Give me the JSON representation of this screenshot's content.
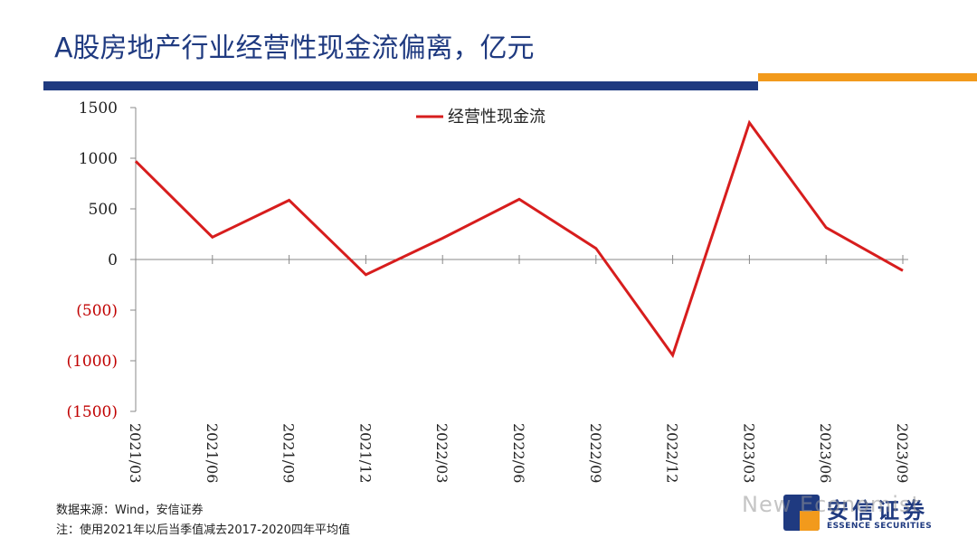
{
  "title": "A股房地产行业经营性现金流偏离，亿元",
  "colors": {
    "title": "#1f3a80",
    "accent_blue": "#1f3a80",
    "accent_orange": "#f29a1c",
    "series": "#d71d1d",
    "negative_tick": "#c00000"
  },
  "chart_data": {
    "type": "line",
    "x": [
      "2021/03",
      "2021/06",
      "2021/09",
      "2021/12",
      "2022/03",
      "2022/06",
      "2022/09",
      "2022/12",
      "2023/03",
      "2023/06",
      "2023/09"
    ],
    "series": [
      {
        "name": "经营性现金流",
        "values": [
          970,
          220,
          585,
          -150,
          210,
          595,
          110,
          -945,
          1350,
          315,
          -110
        ]
      }
    ],
    "ylim": [
      -1500,
      1500
    ],
    "y_ticks": [
      1500,
      1000,
      500,
      0,
      -500,
      -1000,
      -1500
    ],
    "y_tick_labels": [
      "1500",
      "1000",
      "500",
      "0",
      "(500)",
      "(1000)",
      "(1500)"
    ],
    "legend_position": "top-center",
    "grid": false
  },
  "footnotes": {
    "source": "数据来源：Wind，安信证券",
    "note": "注：使用2021年以后当季值减去2017-2020四年平均值"
  },
  "logo": {
    "cn": "安信证券",
    "en": "ESSENCE SECURITIES"
  },
  "watermark": "New Economist"
}
